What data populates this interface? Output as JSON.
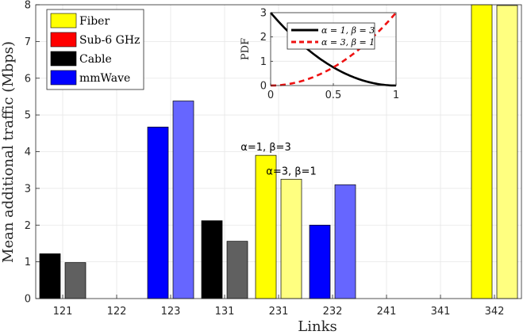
{
  "chart_data": {
    "type": "bar",
    "xlabel": "Links",
    "ylabel": "Mean additional traffic (Mbps)",
    "ylim": [
      0,
      8
    ],
    "yticks": [
      0,
      1,
      2,
      3,
      4,
      5,
      6,
      7,
      8
    ],
    "categories": [
      "121",
      "122",
      "123",
      "131",
      "231",
      "232",
      "241",
      "341",
      "342"
    ],
    "grid": true,
    "legend": {
      "position": "top-left",
      "entries": [
        {
          "label": "Fiber",
          "color": "#ffff00"
        },
        {
          "label": "Sub-6 GHz",
          "color": "#ff0000"
        },
        {
          "label": "Cable",
          "color": "#000000"
        },
        {
          "label": "mmWave",
          "color": "#0000ff"
        }
      ]
    },
    "scenario_bars": [
      {
        "category": "121",
        "technology": "Cable",
        "case": "alpha=1, beta=3",
        "value": 1.22,
        "color": "#000000"
      },
      {
        "category": "121",
        "technology": "Cable",
        "case": "alpha=3, beta=1",
        "value": 0.98,
        "color": "#606060"
      },
      {
        "category": "123",
        "technology": "mmWave",
        "case": "alpha=1, beta=3",
        "value": 4.67,
        "color": "#0000ff"
      },
      {
        "category": "123",
        "technology": "mmWave",
        "case": "alpha=3, beta=1",
        "value": 5.38,
        "color": "#6666ff"
      },
      {
        "category": "131",
        "technology": "Cable",
        "case": "alpha=1, beta=3",
        "value": 2.12,
        "color": "#000000"
      },
      {
        "category": "131",
        "technology": "Cable",
        "case": "alpha=3, beta=1",
        "value": 1.56,
        "color": "#606060"
      },
      {
        "category": "231",
        "technology": "Fiber",
        "case": "alpha=1, beta=3",
        "value": 3.9,
        "color": "#ffff00"
      },
      {
        "category": "231",
        "technology": "Fiber",
        "case": "alpha=3, beta=1",
        "value": 3.25,
        "color": "#ffff80"
      },
      {
        "category": "232",
        "technology": "mmWave",
        "case": "alpha=1, beta=3",
        "value": 2.0,
        "color": "#0000ff"
      },
      {
        "category": "232",
        "technology": "mmWave",
        "case": "alpha=3, beta=1",
        "value": 3.1,
        "color": "#6666ff"
      },
      {
        "category": "342",
        "technology": "Fiber",
        "case": "alpha=1, beta=3",
        "value": 8.0,
        "color": "#ffff00"
      },
      {
        "category": "342",
        "technology": "Fiber",
        "case": "alpha=3, beta=1",
        "value": 7.98,
        "color": "#ffff80"
      }
    ],
    "annotations": [
      {
        "text": "α=1, β=3",
        "category": "231",
        "bar": 0
      },
      {
        "text": "α=3, β=1",
        "category": "231",
        "bar": 1
      }
    ],
    "inset": {
      "type": "line",
      "ylabel": "PDF",
      "xlim": [
        0,
        1
      ],
      "ylim": [
        0,
        3
      ],
      "xticks": [
        0,
        0.5,
        1
      ],
      "xtick_labels": [
        "0",
        "0.5",
        "1"
      ],
      "yticks": [
        0,
        1,
        2,
        3
      ],
      "series": [
        {
          "name": "α = 1, β = 3",
          "formula": "3*(1-x)^2",
          "color": "#000000",
          "style": "solid"
        },
        {
          "name": "α = 3, β = 1",
          "formula": "3*x^2",
          "color": "#ee1111",
          "style": "dashed"
        }
      ]
    }
  }
}
